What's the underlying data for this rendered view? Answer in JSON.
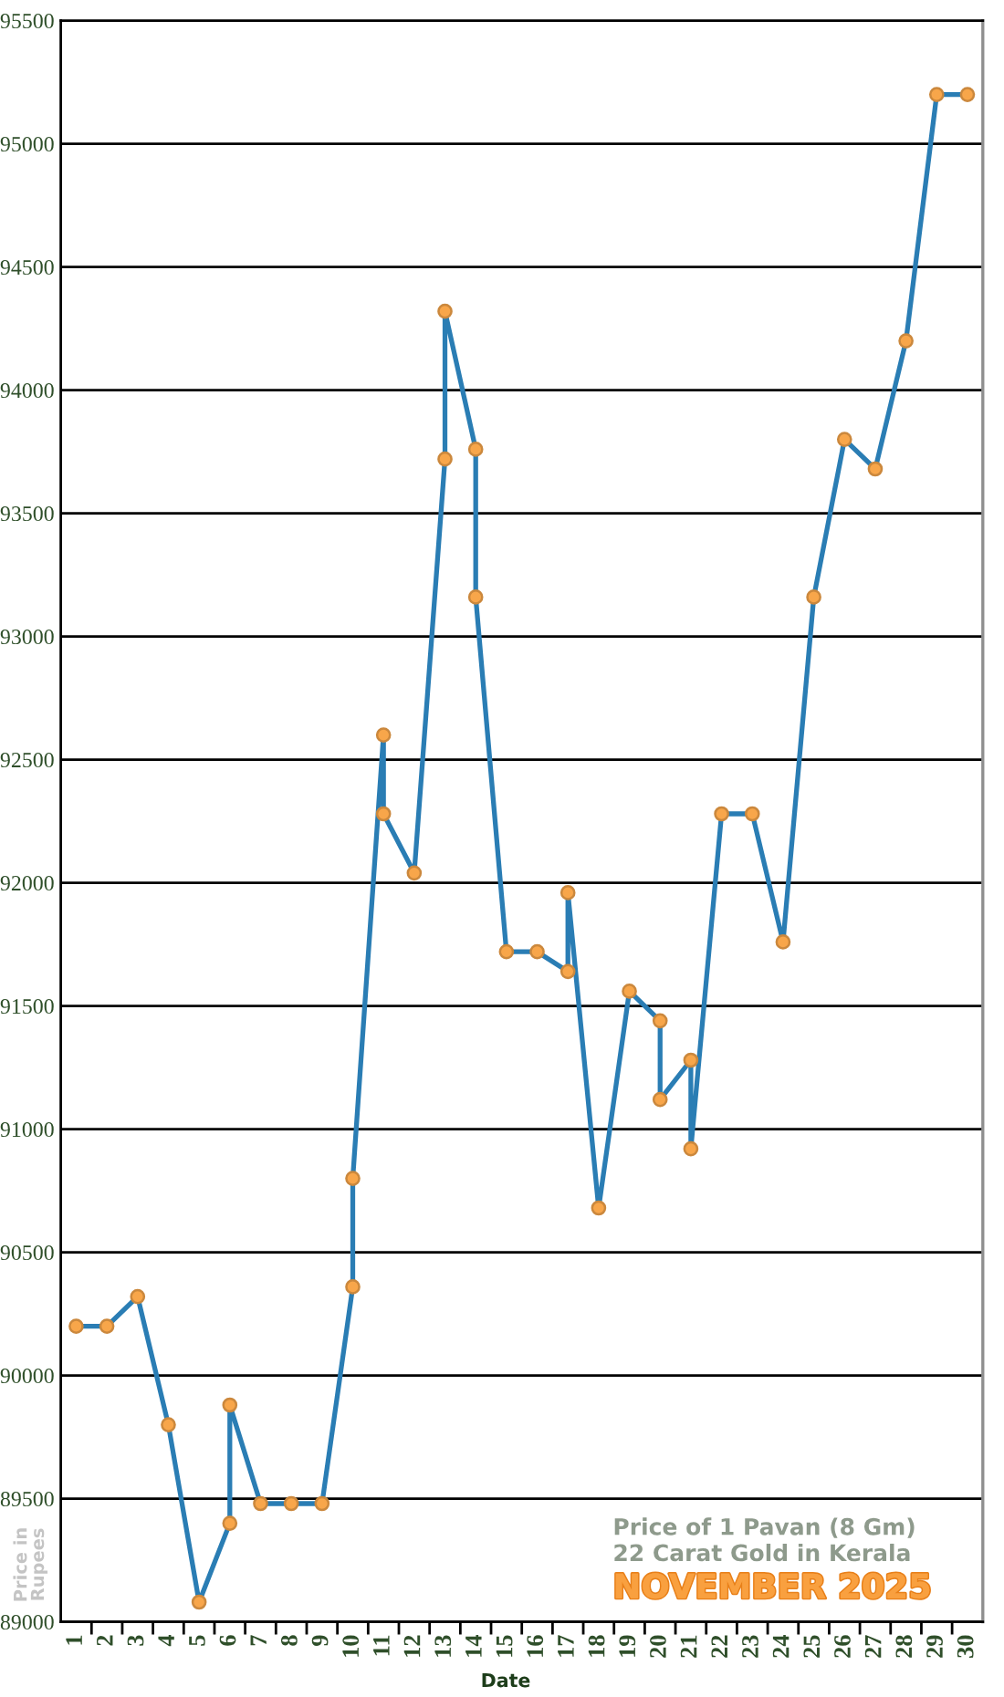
{
  "chart_data": {
    "type": "line",
    "title": "Price of 1 Pavan (8 Gm)",
    "subtitle": "22 Carat Gold in Kerala",
    "annotations": [
      "NOVEMBER 2025"
    ],
    "xlabel": "Date",
    "ylabel": "Price in\nRupees",
    "x": [
      1,
      2,
      3,
      4,
      5,
      6,
      6,
      7,
      8,
      9,
      10,
      10,
      11,
      11,
      12,
      13,
      13,
      14,
      14,
      15,
      16,
      17,
      17,
      18,
      19,
      20,
      20,
      21,
      21,
      22,
      23,
      24,
      25,
      26,
      27,
      28,
      29,
      30
    ],
    "series": [
      {
        "color": "#2a7db4",
        "values": [
          90200,
          90200,
          90320,
          89800,
          89080,
          89400,
          89880,
          89480,
          89480,
          89480,
          90360,
          90800,
          92600,
          92280,
          92040,
          93720,
          94320,
          93760,
          93160,
          91720,
          91720,
          91640,
          91960,
          90680,
          91560,
          91440,
          91120,
          91280,
          90920,
          92280,
          92280,
          91760,
          93160,
          93800,
          93680,
          94200,
          95200,
          95200
        ]
      },
      {
        "type": "scatter",
        "marker": "circle",
        "color": "#f8a64a",
        "values": [
          90200,
          90200,
          90320,
          89800,
          89080,
          89400,
          89880,
          89480,
          89480,
          89480,
          90360,
          90800,
          92600,
          92280,
          92040,
          93720,
          94320,
          93760,
          93160,
          91720,
          91720,
          91640,
          91960,
          90680,
          91560,
          91440,
          91120,
          91280,
          90920,
          92280,
          92280,
          91760,
          93160,
          93800,
          93680,
          94200,
          95200,
          95200
        ]
      }
    ],
    "line_style": "solid",
    "xlim": [
      0.5,
      30.5
    ],
    "xticks": [
      1,
      {
        "value": 1.5,
        "label": null
      },
      2,
      {
        "value": 2.5,
        "label": null
      },
      3,
      {
        "value": 3.5,
        "label": null
      },
      4,
      {
        "value": 4.5,
        "label": null
      },
      5,
      {
        "value": 5.5,
        "label": null
      },
      6,
      {
        "value": 6.5,
        "label": null
      },
      7,
      {
        "value": 7.5,
        "label": null
      },
      8,
      {
        "value": 8.5,
        "label": null
      },
      9,
      {
        "value": 9.5,
        "label": null
      },
      10,
      {
        "value": 10.5,
        "label": null
      },
      11,
      {
        "value": 11.5,
        "label": null
      },
      12,
      {
        "value": 12.5,
        "label": null
      },
      13,
      {
        "value": 13.5,
        "label": null
      },
      14,
      {
        "value": 14.5,
        "label": null
      },
      15,
      {
        "value": 15.5,
        "label": null
      },
      16,
      {
        "value": 16.5,
        "label": null
      },
      17,
      {
        "value": 17.5,
        "label": null
      },
      18,
      {
        "value": 18.5,
        "label": null
      },
      19,
      {
        "value": 19.5,
        "label": null
      },
      20,
      {
        "value": 20.5,
        "label": null
      },
      21,
      {
        "value": 21.5,
        "label": null
      },
      22,
      {
        "value": 22.5,
        "label": null
      },
      23,
      {
        "value": 23.5,
        "label": null
      },
      24,
      {
        "value": 24.5,
        "label": null
      },
      25,
      {
        "value": 25.5,
        "label": null
      },
      26,
      {
        "value": 26.5,
        "label": null
      },
      27,
      {
        "value": 27.5,
        "label": null
      },
      28,
      {
        "value": 28.5,
        "label": null
      },
      29,
      {
        "value": 29.5,
        "label": null
      },
      30
    ],
    "ylim": [
      89000,
      95500
    ],
    "yticks": [
      89000,
      89500,
      90000,
      90500,
      91000,
      91500,
      92000,
      92500,
      93000,
      93500,
      94000,
      94500,
      95000,
      95500
    ],
    "grid": "y"
  }
}
